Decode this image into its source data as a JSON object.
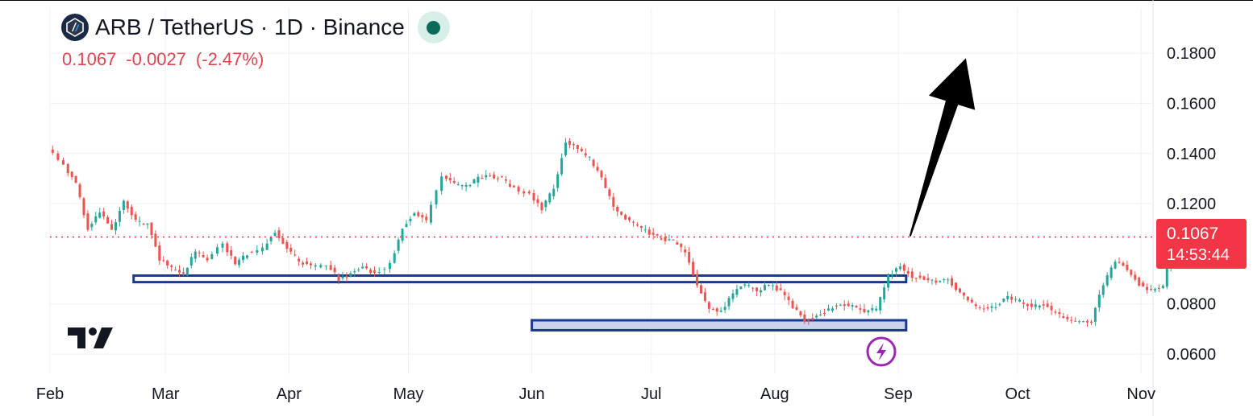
{
  "header": {
    "pair_title": "ARB / TetherUS · 1D · Binance",
    "quote": {
      "last": "0.1067",
      "change": "-0.0027",
      "change_pct": "(-2.47%)"
    }
  },
  "price_label": {
    "price": "0.1067",
    "countdown": "14:53:44"
  },
  "colors": {
    "up": "#26a69a",
    "down": "#ef5350",
    "price_line": "#f23645",
    "support_border": "#1a3a8f",
    "support_fill": "#c9d3ee",
    "arrow": "#000000"
  },
  "chart_data": {
    "type": "candlestick",
    "y_ticks": [
      "0.0600",
      "0.0800",
      "0.1200",
      "0.1400",
      "0.1600",
      "0.1800"
    ],
    "x_ticks": [
      "Feb",
      "Mar",
      "Apr",
      "May",
      "Jun",
      "Jul",
      "Aug",
      "Sep",
      "Oct",
      "Nov"
    ],
    "ylim": [
      0.052,
      0.198
    ],
    "xlim": [
      "2024-02-01",
      "2024-11-04"
    ],
    "last_price": 0.1067,
    "grid": true,
    "series": [
      {
        "values": [
          [
            "2024-02-01",
            0.142
          ],
          [
            "2024-02-05",
            0.135
          ],
          [
            "2024-02-08",
            0.128
          ],
          [
            "2024-02-11",
            0.11
          ],
          [
            "2024-02-14",
            0.117
          ],
          [
            "2024-02-17",
            0.109
          ],
          [
            "2024-02-20",
            0.121
          ],
          [
            "2024-02-23",
            0.113
          ],
          [
            "2024-02-26",
            0.112
          ],
          [
            "2024-02-29",
            0.098
          ],
          [
            "2024-03-03",
            0.094
          ],
          [
            "2024-03-06",
            0.092
          ],
          [
            "2024-03-09",
            0.101
          ],
          [
            "2024-03-12",
            0.098
          ],
          [
            "2024-03-16",
            0.104
          ],
          [
            "2024-03-19",
            0.096
          ],
          [
            "2024-03-22",
            0.1
          ],
          [
            "2024-03-26",
            0.102
          ],
          [
            "2024-03-29",
            0.109
          ],
          [
            "2024-04-01",
            0.102
          ],
          [
            "2024-04-04",
            0.097
          ],
          [
            "2024-04-07",
            0.095
          ],
          [
            "2024-04-11",
            0.096
          ],
          [
            "2024-04-14",
            0.09
          ],
          [
            "2024-04-17",
            0.092
          ],
          [
            "2024-04-20",
            0.095
          ],
          [
            "2024-04-23",
            0.092
          ],
          [
            "2024-04-27",
            0.096
          ],
          [
            "2024-04-30",
            0.11
          ],
          [
            "2024-05-03",
            0.117
          ],
          [
            "2024-05-06",
            0.113
          ],
          [
            "2024-05-10",
            0.131
          ],
          [
            "2024-05-13",
            0.128
          ],
          [
            "2024-05-16",
            0.127
          ],
          [
            "2024-05-19",
            0.13
          ],
          [
            "2024-05-22",
            0.131
          ],
          [
            "2024-05-25",
            0.13
          ],
          [
            "2024-05-28",
            0.126
          ],
          [
            "2024-06-01",
            0.124
          ],
          [
            "2024-06-04",
            0.118
          ],
          [
            "2024-06-07",
            0.126
          ],
          [
            "2024-06-10",
            0.145
          ],
          [
            "2024-06-13",
            0.142
          ],
          [
            "2024-06-16",
            0.138
          ],
          [
            "2024-06-19",
            0.13
          ],
          [
            "2024-06-22",
            0.119
          ],
          [
            "2024-06-25",
            0.114
          ],
          [
            "2024-06-28",
            0.111
          ],
          [
            "2024-07-01",
            0.108
          ],
          [
            "2024-07-04",
            0.106
          ],
          [
            "2024-07-07",
            0.105
          ],
          [
            "2024-07-10",
            0.101
          ],
          [
            "2024-07-13",
            0.087
          ],
          [
            "2024-07-16",
            0.078
          ],
          [
            "2024-07-19",
            0.077
          ],
          [
            "2024-07-22",
            0.084
          ],
          [
            "2024-07-25",
            0.088
          ],
          [
            "2024-07-28",
            0.085
          ],
          [
            "2024-07-31",
            0.088
          ],
          [
            "2024-08-03",
            0.085
          ],
          [
            "2024-08-06",
            0.079
          ],
          [
            "2024-08-09",
            0.073
          ],
          [
            "2024-08-12",
            0.075
          ],
          [
            "2024-08-15",
            0.078
          ],
          [
            "2024-08-18",
            0.08
          ],
          [
            "2024-08-21",
            0.079
          ],
          [
            "2024-08-24",
            0.077
          ],
          [
            "2024-08-27",
            0.078
          ],
          [
            "2024-08-30",
            0.091
          ],
          [
            "2024-09-02",
            0.095
          ],
          [
            "2024-09-05",
            0.091
          ],
          [
            "2024-09-08",
            0.09
          ],
          [
            "2024-09-11",
            0.089
          ],
          [
            "2024-09-14",
            0.09
          ],
          [
            "2024-09-17",
            0.084
          ],
          [
            "2024-09-20",
            0.08
          ],
          [
            "2024-09-23",
            0.078
          ],
          [
            "2024-09-26",
            0.079
          ],
          [
            "2024-09-29",
            0.083
          ],
          [
            "2024-10-02",
            0.081
          ],
          [
            "2024-10-05",
            0.079
          ],
          [
            "2024-10-08",
            0.08
          ],
          [
            "2024-10-11",
            0.076
          ],
          [
            "2024-10-14",
            0.074
          ],
          [
            "2024-10-17",
            0.073
          ],
          [
            "2024-10-20",
            0.073
          ],
          [
            "2024-10-23",
            0.088
          ],
          [
            "2024-10-26",
            0.097
          ],
          [
            "2024-10-29",
            0.094
          ],
          [
            "2024-11-01",
            0.088
          ],
          [
            "2024-11-04",
            0.085
          ],
          [
            "2024-11-07",
            0.087
          ],
          [
            "2024-11-10",
            0.108
          ],
          [
            "2024-11-12",
            0.1067
          ]
        ]
      }
    ],
    "annotations": [
      {
        "type": "support_zone",
        "y_range": [
          0.0887,
          0.0913
        ],
        "x_range": [
          "2024-02-22",
          "2024-09-03"
        ]
      },
      {
        "type": "support_zone",
        "y_range": [
          0.0695,
          0.0735
        ],
        "x_range": [
          "2024-06-01",
          "2024-09-03"
        ]
      },
      {
        "type": "arrow",
        "from": [
          "2024-09-04",
          0.107
        ],
        "to": [
          "2024-09-18",
          0.178
        ]
      }
    ]
  }
}
